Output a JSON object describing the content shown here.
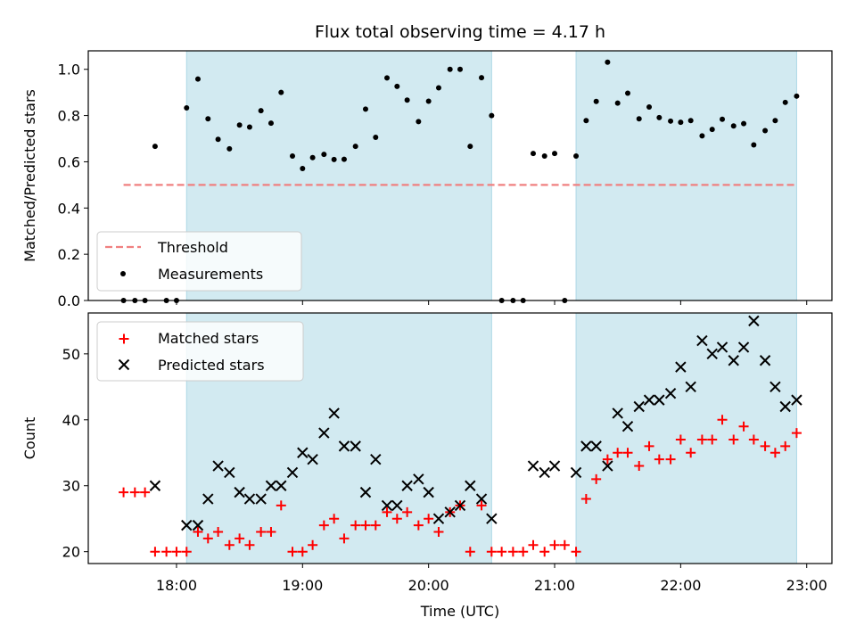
{
  "chart_data": {
    "type": "scatter",
    "title": "Flux total observing time = 4.17 h",
    "xlabel": "Time (UTC)",
    "x_tick_labels": [
      "18:00",
      "19:00",
      "20:00",
      "21:00",
      "22:00",
      "23:00"
    ],
    "x_ticks_hours": [
      18,
      19,
      20,
      21,
      22,
      23
    ],
    "xlim_hours": [
      17.3,
      23.2
    ],
    "shaded_intervals_hours": [
      [
        18.08,
        20.5
      ],
      [
        21.17,
        22.92
      ]
    ],
    "colors": {
      "shade": "#add8e6",
      "threshold": "#f08080",
      "measurements": "#000000",
      "matched": "#ff0000",
      "predicted": "#000000"
    },
    "top_panel": {
      "ylabel": "Matched/Predicted stars",
      "ylim": [
        0,
        1.08
      ],
      "y_ticks": [
        0.0,
        0.2,
        0.4,
        0.6,
        0.8,
        1.0
      ],
      "y_tick_labels": [
        "0.0",
        "0.2",
        "0.4",
        "0.6",
        "0.8",
        "1.0"
      ],
      "legend_location": "lower-left",
      "series": [
        {
          "name": "Threshold",
          "kind": "line",
          "style": "dashed",
          "x": [
            17.58,
            22.92
          ],
          "y": [
            0.5,
            0.5
          ]
        },
        {
          "name": "Measurements",
          "kind": "points",
          "x": [
            17.58,
            17.67,
            17.75,
            17.83,
            17.92,
            18.0,
            18.08,
            18.17,
            18.25,
            18.33,
            18.42,
            18.5,
            18.58,
            18.67,
            18.75,
            18.83,
            18.92,
            19.0,
            19.08,
            19.17,
            19.25,
            19.33,
            19.42,
            19.5,
            19.58,
            19.67,
            19.75,
            19.83,
            19.92,
            20.0,
            20.08,
            20.17,
            20.25,
            20.33,
            20.42,
            20.5,
            20.58,
            20.67,
            20.75,
            20.83,
            20.92,
            21.0,
            21.08,
            21.17,
            21.25,
            21.33,
            21.42,
            21.5,
            21.58,
            21.67,
            21.75,
            21.83,
            21.92,
            22.0,
            22.08,
            22.17,
            22.25,
            22.33,
            22.42,
            22.5,
            22.58,
            22.67,
            22.75,
            22.83,
            22.92
          ],
          "y": [
            0.0,
            0.0,
            0.0,
            0.667,
            0.0,
            0.0,
            0.833,
            0.958,
            0.786,
            0.697,
            0.656,
            0.759,
            0.75,
            0.821,
            0.767,
            0.9,
            0.625,
            0.571,
            0.618,
            0.632,
            0.61,
            0.611,
            0.667,
            0.828,
            0.706,
            0.963,
            0.926,
            0.867,
            0.774,
            0.862,
            0.92,
            1.0,
            1.0,
            0.667,
            0.964,
            0.8,
            0.0,
            0.0,
            0.0,
            0.636,
            0.625,
            0.636,
            0.0,
            0.625,
            0.778,
            0.861,
            1.031,
            0.854,
            0.897,
            0.786,
            0.837,
            0.791,
            0.776,
            0.771,
            0.778,
            0.712,
            0.74,
            0.784,
            0.755,
            0.765,
            0.673,
            0.735,
            0.778,
            0.857,
            0.884
          ]
        }
      ]
    },
    "bottom_panel": {
      "ylabel": "Count",
      "ylim": [
        18.2,
        56.2
      ],
      "y_ticks": [
        20,
        30,
        40,
        50
      ],
      "y_tick_labels": [
        "20",
        "30",
        "40",
        "50"
      ],
      "legend_location": "upper-left",
      "series": [
        {
          "name": "Matched stars",
          "marker": "plus",
          "x": [
            17.58,
            17.67,
            17.75,
            17.83,
            17.92,
            18.0,
            18.08,
            18.17,
            18.25,
            18.33,
            18.42,
            18.5,
            18.58,
            18.67,
            18.75,
            18.83,
            18.92,
            19.0,
            19.08,
            19.17,
            19.25,
            19.33,
            19.42,
            19.5,
            19.58,
            19.67,
            19.75,
            19.83,
            19.92,
            20.0,
            20.08,
            20.17,
            20.25,
            20.33,
            20.42,
            20.5,
            20.58,
            20.67,
            20.75,
            20.83,
            20.92,
            21.0,
            21.08,
            21.17,
            21.25,
            21.33,
            21.42,
            21.5,
            21.58,
            21.67,
            21.75,
            21.83,
            21.92,
            22.0,
            22.08,
            22.17,
            22.25,
            22.33,
            22.42,
            22.5,
            22.58,
            22.67,
            22.75,
            22.83,
            22.92
          ],
          "y": [
            29,
            29,
            29,
            20,
            20,
            20,
            20,
            23,
            22,
            23,
            21,
            22,
            21,
            23,
            23,
            27,
            20,
            20,
            21,
            24,
            25,
            22,
            24,
            24,
            24,
            26,
            25,
            26,
            24,
            25,
            23,
            26,
            27,
            20,
            27,
            20,
            20,
            20,
            20,
            21,
            20,
            21,
            21,
            20,
            28,
            31,
            34,
            35,
            35,
            33,
            36,
            34,
            34,
            37,
            35,
            37,
            37,
            40,
            37,
            39,
            37,
            36,
            35,
            36,
            38
          ]
        },
        {
          "name": "Predicted stars",
          "marker": "x",
          "x": [
            17.83,
            18.08,
            18.17,
            18.25,
            18.33,
            18.42,
            18.5,
            18.58,
            18.67,
            18.75,
            18.83,
            18.92,
            19.0,
            19.08,
            19.17,
            19.25,
            19.33,
            19.42,
            19.5,
            19.58,
            19.67,
            19.75,
            19.83,
            19.92,
            20.0,
            20.08,
            20.17,
            20.25,
            20.33,
            20.42,
            20.5,
            20.83,
            20.92,
            21.0,
            21.17,
            21.25,
            21.33,
            21.42,
            21.5,
            21.58,
            21.67,
            21.75,
            21.83,
            21.92,
            22.0,
            22.08,
            22.17,
            22.25,
            22.33,
            22.42,
            22.5,
            22.58,
            22.67,
            22.75,
            22.83,
            22.92
          ],
          "y": [
            30,
            24,
            24,
            28,
            33,
            32,
            29,
            28,
            28,
            30,
            30,
            32,
            35,
            34,
            38,
            41,
            36,
            36,
            29,
            34,
            27,
            27,
            30,
            31,
            29,
            25,
            26,
            27,
            30,
            28,
            25,
            33,
            32,
            33,
            32,
            36,
            36,
            33,
            41,
            39,
            42,
            43,
            43,
            44,
            48,
            45,
            52,
            50,
            51,
            49,
            51,
            55,
            49,
            45,
            42,
            43
          ]
        }
      ]
    }
  }
}
